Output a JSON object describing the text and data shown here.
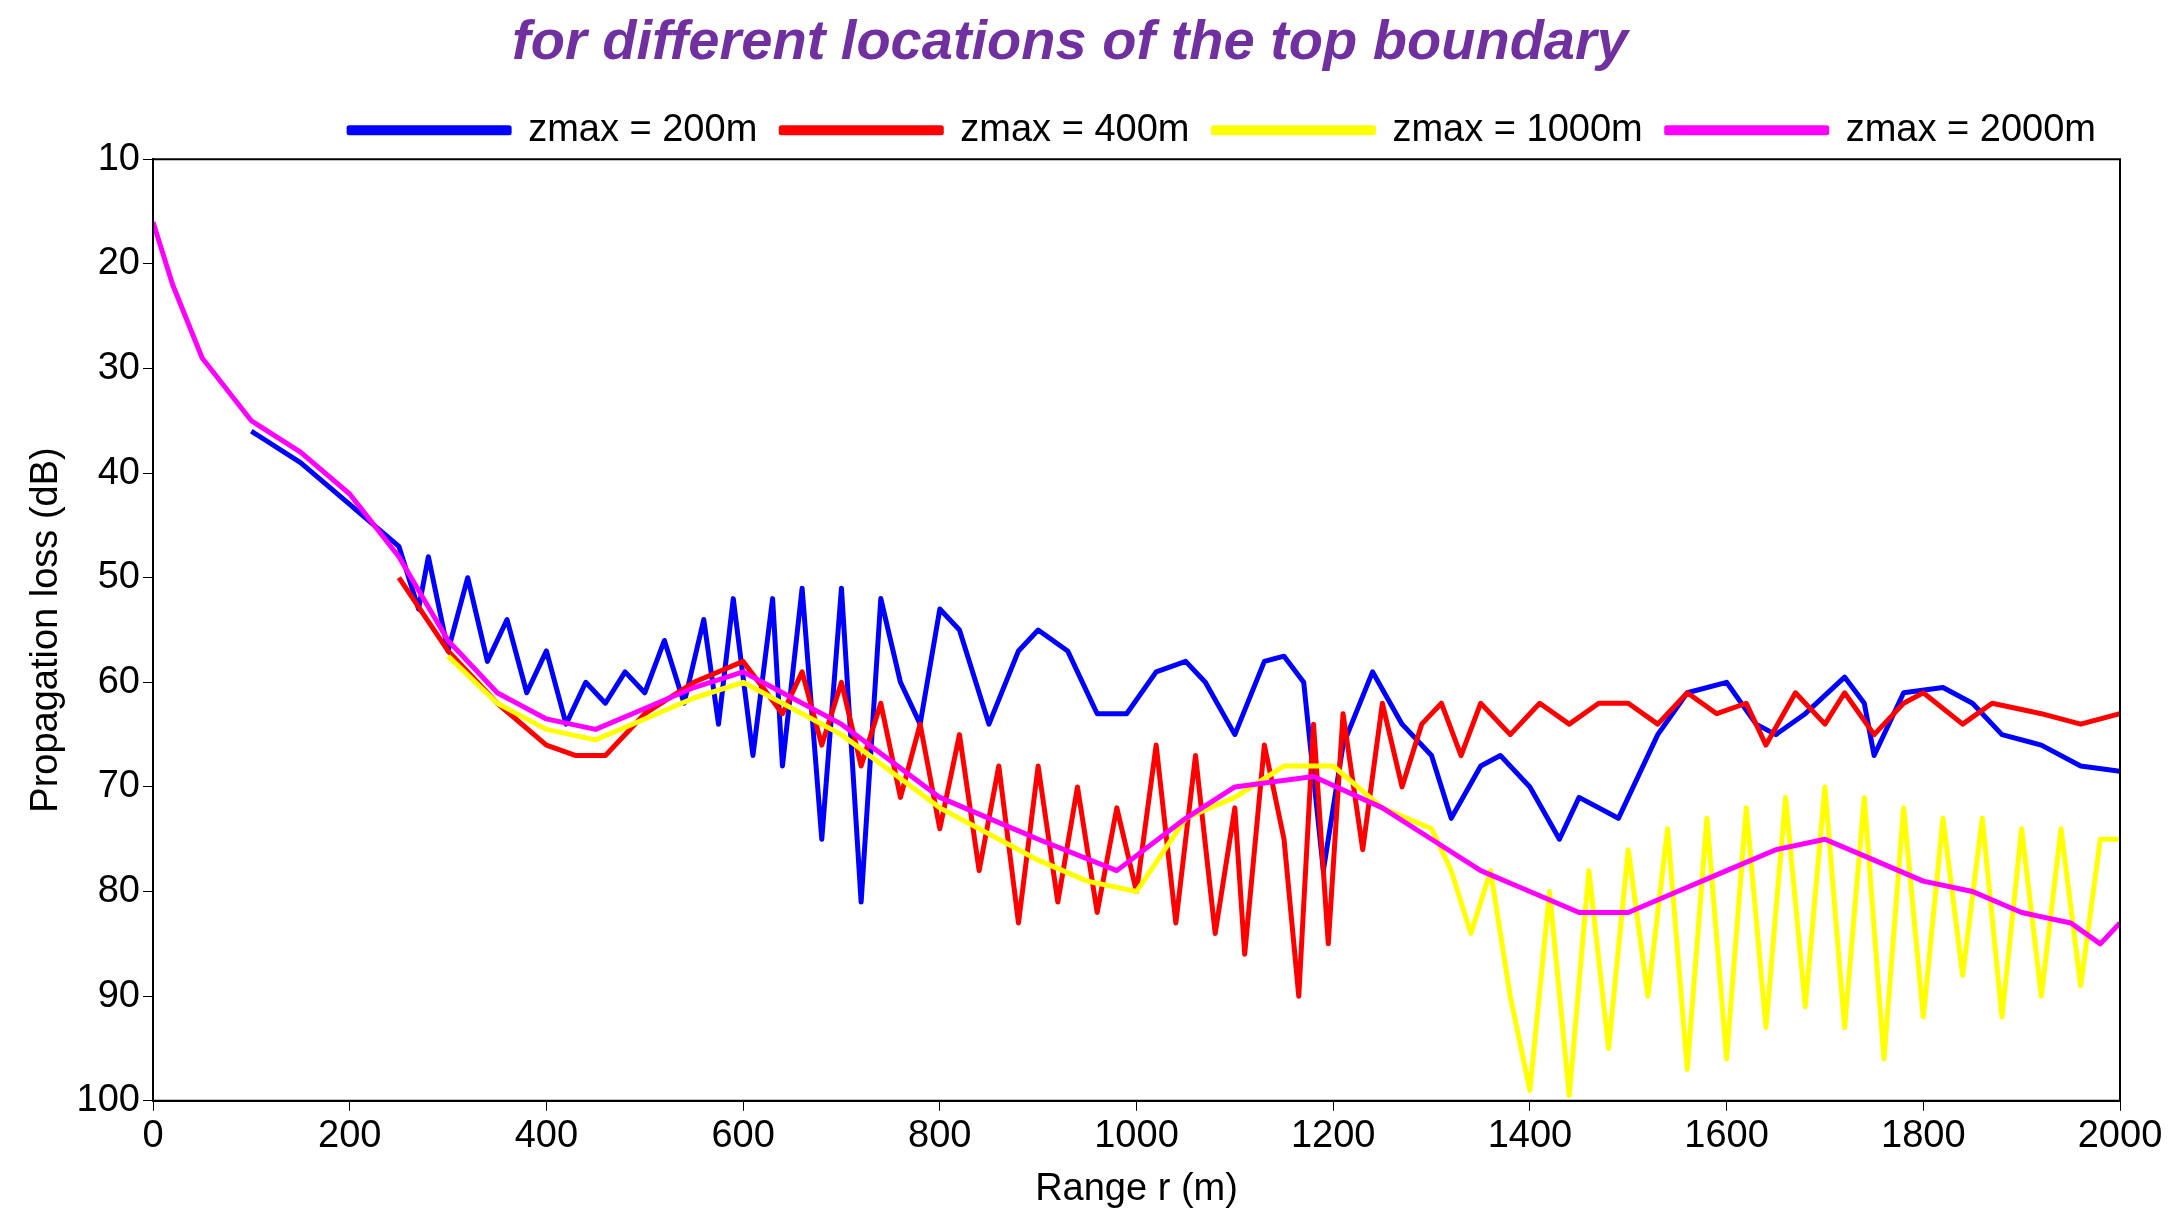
{
  "chart_data": {
    "type": "line",
    "title": "for different locations of the top boundary",
    "xlabel": "Range r (m)",
    "ylabel": "Propagation loss (dB)",
    "xlim": [
      0,
      2000
    ],
    "xticks": [
      0,
      200,
      400,
      600,
      800,
      1000,
      1200,
      1400,
      1600,
      1800,
      2000
    ],
    "ylim": [
      100,
      10
    ],
    "yticks": [
      10,
      20,
      30,
      40,
      50,
      60,
      70,
      80,
      90,
      100
    ],
    "grid": false,
    "legend": "top right",
    "marker": "none",
    "line_style": "solid",
    "series": [
      {
        "name": "zmax = 200m",
        "color": "#0000ff",
        "x": [
          100,
          150,
          200,
          250,
          270,
          280,
          300,
          320,
          340,
          360,
          380,
          400,
          420,
          440,
          460,
          480,
          500,
          520,
          540,
          560,
          575,
          590,
          610,
          630,
          640,
          660,
          680,
          700,
          720,
          740,
          760,
          780,
          800,
          820,
          850,
          880,
          900,
          930,
          960,
          990,
          1020,
          1050,
          1070,
          1100,
          1130,
          1150,
          1170,
          1190,
          1210,
          1240,
          1270,
          1300,
          1320,
          1350,
          1370,
          1400,
          1430,
          1450,
          1490,
          1530,
          1560,
          1600,
          1630,
          1650,
          1680,
          1720,
          1740,
          1750,
          1780,
          1820,
          1850,
          1880,
          1920,
          1960,
          2000
        ],
        "values": [
          36,
          39,
          43,
          47,
          53,
          48,
          57,
          50,
          58,
          54,
          61,
          57,
          64,
          60,
          62,
          59,
          61,
          56,
          62,
          54,
          64,
          52,
          67,
          52,
          68,
          51,
          75,
          51,
          81,
          52,
          60,
          64,
          53,
          55,
          64,
          57,
          55,
          57,
          63,
          63,
          59,
          58,
          60,
          65,
          58,
          57.5,
          60,
          78,
          66,
          59,
          64,
          67,
          73,
          68,
          67,
          70,
          75,
          71,
          73,
          65,
          61,
          60,
          64,
          65,
          63,
          59.5,
          62,
          67,
          61,
          60.5,
          62,
          65,
          66,
          68,
          68.5
        ]
      },
      {
        "name": "zmax = 400m",
        "color": "#ff0000",
        "x": [
          250,
          300,
          350,
          400,
          430,
          460,
          500,
          550,
          600,
          640,
          660,
          680,
          700,
          720,
          740,
          760,
          780,
          800,
          820,
          840,
          860,
          880,
          900,
          920,
          940,
          960,
          980,
          1000,
          1020,
          1040,
          1060,
          1080,
          1100,
          1110,
          1130,
          1150,
          1165,
          1180,
          1195,
          1210,
          1230,
          1250,
          1270,
          1290,
          1310,
          1330,
          1350,
          1380,
          1410,
          1440,
          1470,
          1500,
          1530,
          1560,
          1590,
          1620,
          1640,
          1670,
          1700,
          1720,
          1750,
          1780,
          1800,
          1840,
          1870,
          1920,
          1960,
          2000
        ],
        "values": [
          50,
          57,
          62,
          66,
          67,
          67,
          63,
          60,
          58,
          63,
          59,
          66,
          60,
          68,
          62,
          71,
          64,
          74,
          65,
          78,
          68,
          83,
          68,
          81,
          70,
          82,
          72,
          80,
          66,
          83,
          67,
          84,
          72,
          86,
          66,
          75,
          90,
          64,
          85,
          63,
          76,
          62,
          70,
          64,
          62,
          67,
          62,
          65,
          62,
          64,
          62,
          62,
          64,
          61,
          63,
          62,
          66,
          61,
          64,
          61,
          65,
          62,
          61,
          64,
          62,
          63,
          64,
          63
        ]
      },
      {
        "name": "zmax = 1000m",
        "color": "#ffff00",
        "x": [
          300,
          350,
          400,
          450,
          500,
          550,
          600,
          700,
          800,
          900,
          950,
          1000,
          1050,
          1100,
          1150,
          1200,
          1250,
          1300,
          1320,
          1340,
          1360,
          1380,
          1400,
          1420,
          1440,
          1460,
          1480,
          1500,
          1520,
          1540,
          1560,
          1580,
          1600,
          1620,
          1640,
          1660,
          1680,
          1700,
          1720,
          1740,
          1760,
          1780,
          1800,
          1820,
          1840,
          1860,
          1880,
          1900,
          1920,
          1940,
          1960,
          1980,
          2000
        ],
        "values": [
          57.5,
          62,
          64.5,
          65.5,
          63.5,
          61.5,
          60,
          65,
          72,
          77,
          79,
          80,
          73,
          71,
          68,
          68,
          72,
          74,
          78,
          84,
          78,
          90,
          99,
          80,
          99.5,
          78,
          95,
          76,
          90,
          74,
          97,
          73,
          96,
          72,
          93,
          71,
          91,
          70,
          93,
          71,
          96,
          72,
          92,
          73,
          88,
          73,
          92,
          74,
          90,
          74,
          89,
          75,
          75
        ]
      },
      {
        "name": "zmax = 2000m",
        "color": "#ff00ff",
        "x": [
          0,
          20,
          50,
          100,
          150,
          200,
          250,
          300,
          350,
          400,
          450,
          500,
          550,
          600,
          700,
          800,
          900,
          980,
          1050,
          1100,
          1180,
          1250,
          1300,
          1350,
          1400,
          1450,
          1500,
          1550,
          1600,
          1650,
          1700,
          1750,
          1800,
          1850,
          1900,
          1950,
          1980,
          2000
        ],
        "values": [
          16,
          22,
          29,
          35,
          38,
          42,
          48,
          56,
          61,
          63.5,
          64.5,
          62.5,
          60.5,
          59,
          64,
          71,
          75,
          78,
          73,
          70,
          69,
          72,
          75,
          78,
          80,
          82,
          82,
          80,
          78,
          76,
          75,
          77,
          79,
          80,
          82,
          83,
          85,
          83
        ]
      }
    ]
  }
}
